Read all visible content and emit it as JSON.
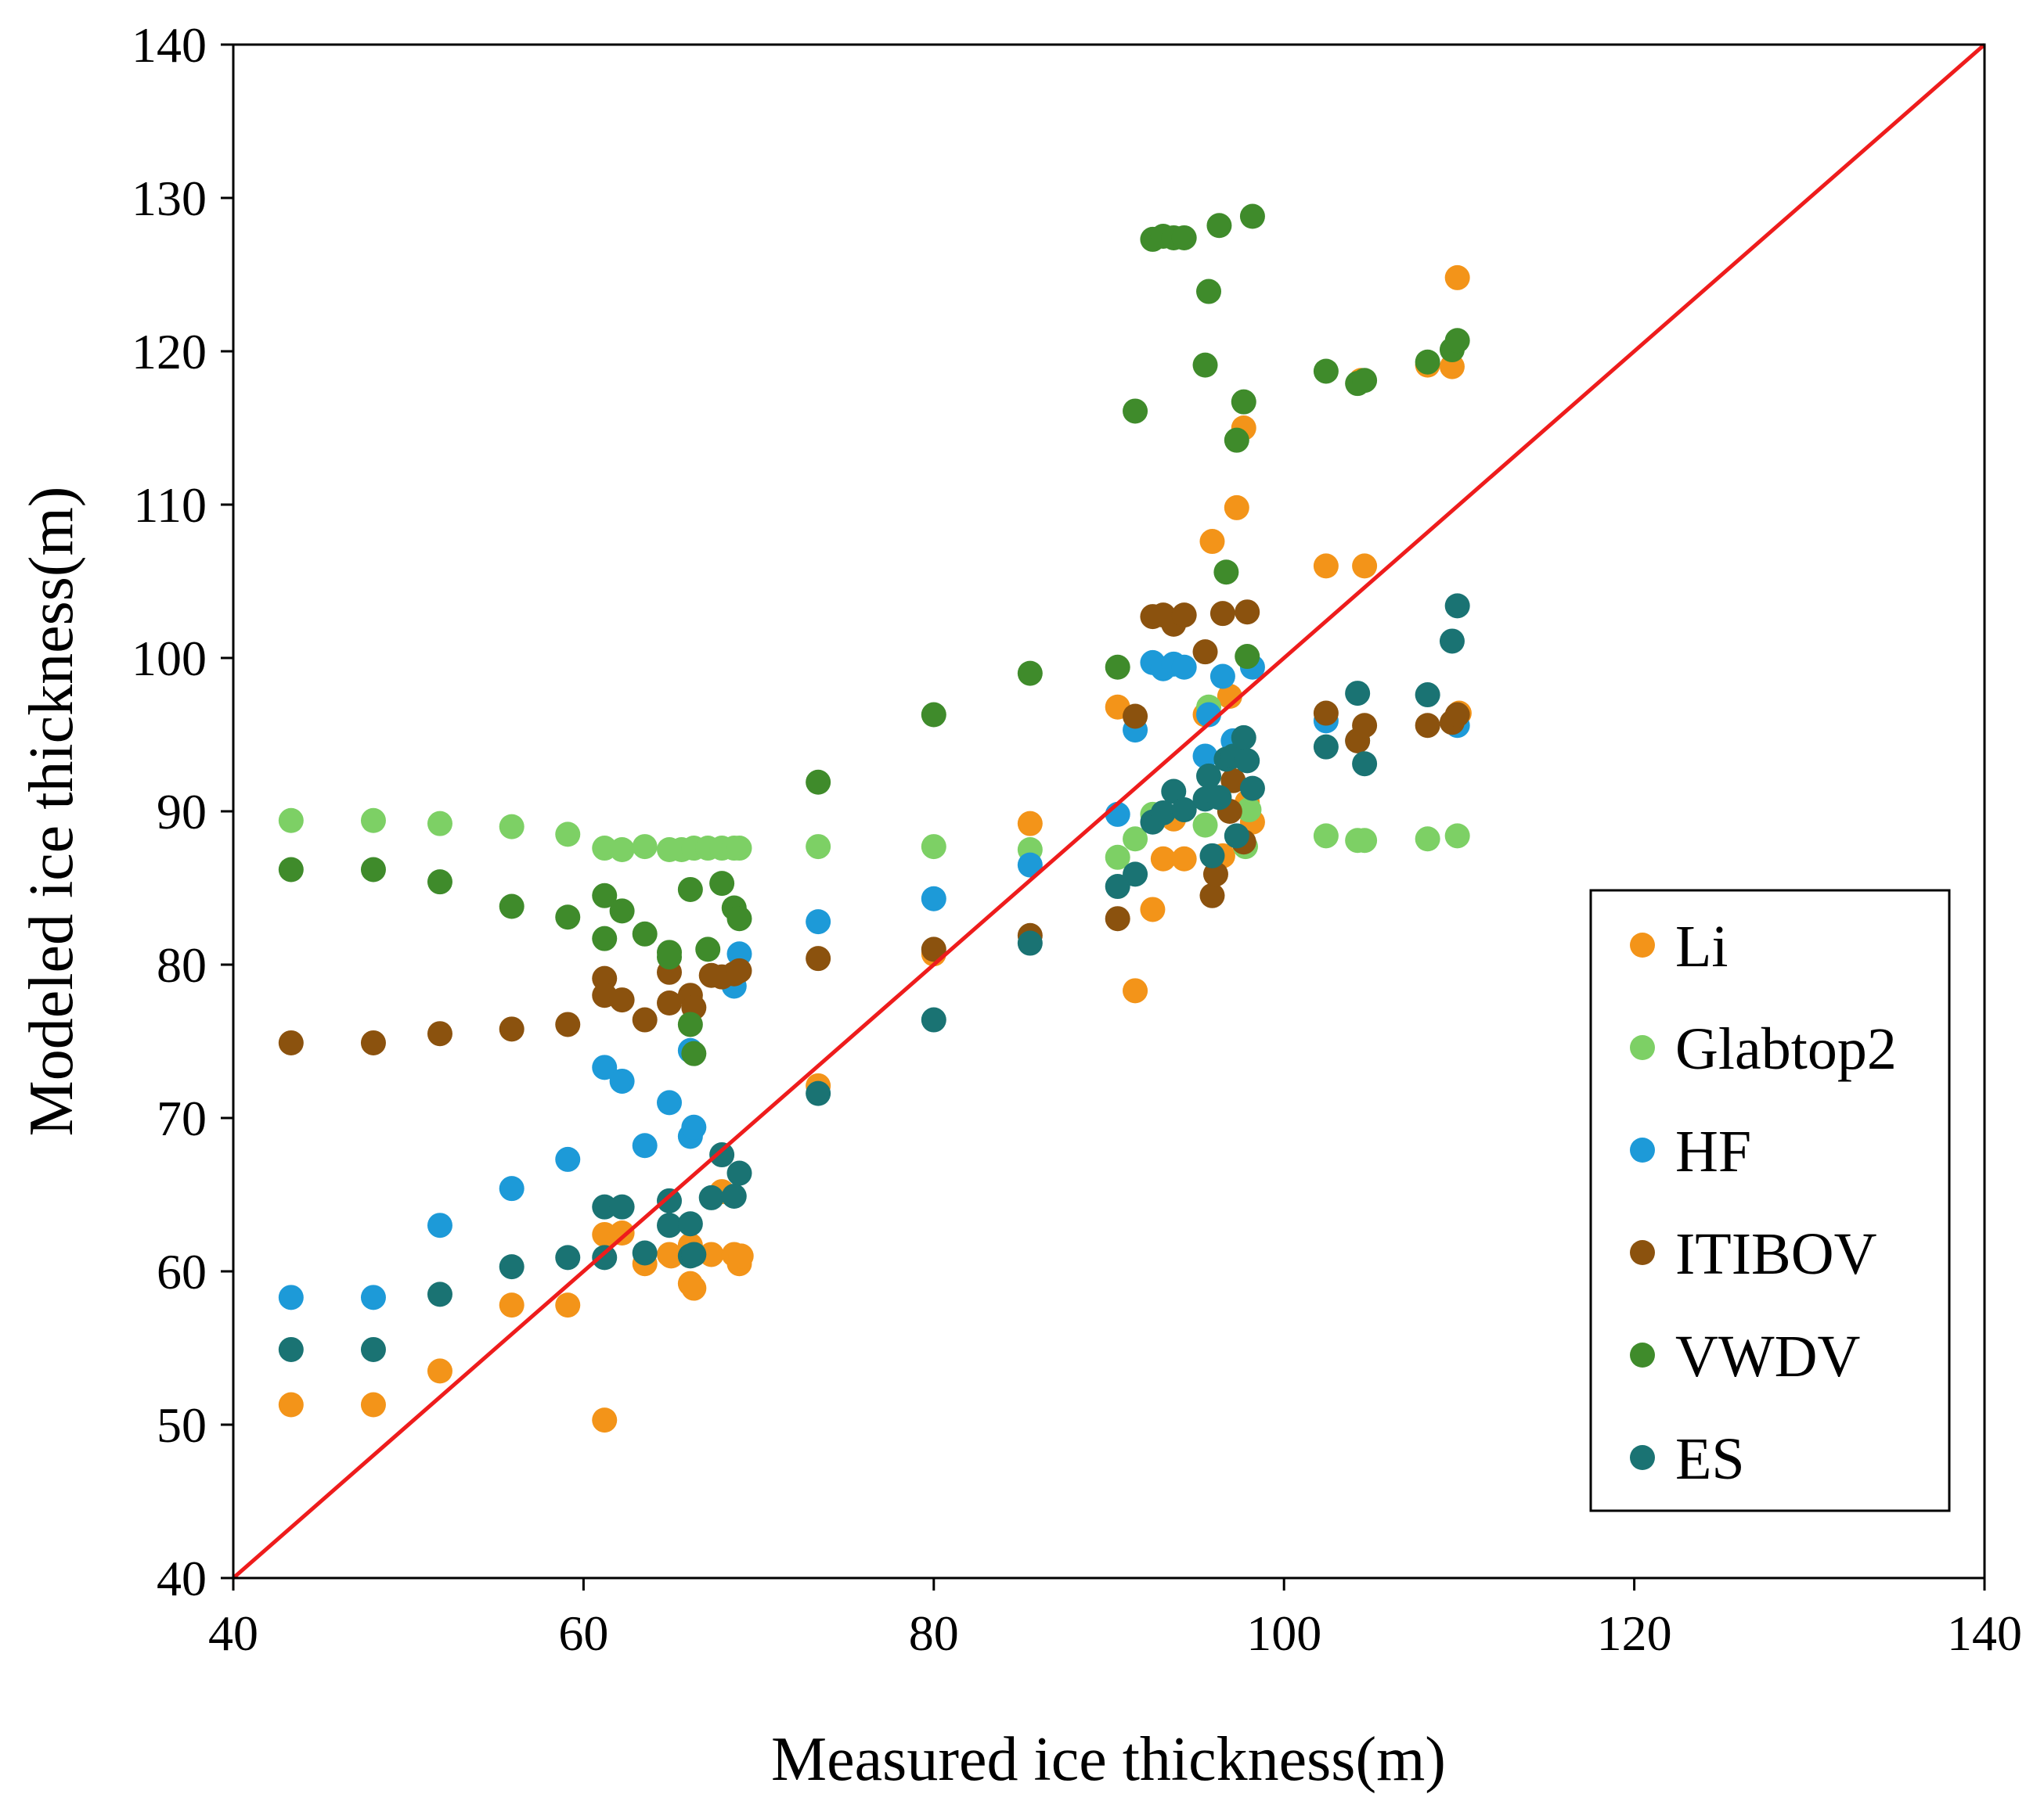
{
  "chart_data": {
    "type": "scatter",
    "title": "",
    "xlabel": "Measured ice thickness(m)",
    "ylabel": "Modeled ice thickness(m)",
    "xlim": [
      40,
      140
    ],
    "ylim": [
      40,
      140
    ],
    "xticks": [
      40,
      60,
      80,
      100,
      120,
      140
    ],
    "yticks": [
      40,
      50,
      60,
      70,
      80,
      90,
      100,
      110,
      120,
      130,
      140
    ],
    "grid": false,
    "legend_position": "bottom-right",
    "reference_line": {
      "name": "1:1 line",
      "color": "#ee1c1c",
      "from": [
        40,
        40
      ],
      "to": [
        140,
        140
      ]
    },
    "series": [
      {
        "name": "Li",
        "color": "#f39419",
        "x": [
          43.3,
          48,
          51.8,
          55.9,
          59.1,
          61.2,
          61.2,
          62.2,
          63.5,
          64.9,
          65,
          66.1,
          66.3,
          66.1,
          67.3,
          67.9,
          68.6,
          68.9,
          69,
          73.4,
          80,
          85.5,
          90.5,
          91.5,
          92.5,
          93.1,
          93.7,
          94.3,
          95.5,
          95.9,
          96.5,
          96.9,
          97.3,
          97.7,
          97.9,
          98.2,
          102.4,
          104.4,
          104.6,
          108.2,
          109.6,
          109.9,
          110
        ],
        "y": [
          51.3,
          51.3,
          53.5,
          57.8,
          57.8,
          50.3,
          62.4,
          62.5,
          60.5,
          61.1,
          61,
          59.2,
          58.9,
          61.7,
          61.1,
          65.2,
          61.1,
          60.5,
          61,
          72.1,
          80.7,
          89.2,
          96.8,
          78.3,
          83.6,
          86.9,
          89.5,
          86.9,
          96.3,
          107.6,
          87.1,
          97.5,
          109.8,
          115,
          90.6,
          89.3,
          106,
          118.1,
          106,
          119.1,
          119,
          124.8,
          96.4
        ]
      },
      {
        "name": "Glabtop2",
        "color": "#7dd065",
        "x": [
          43.3,
          48,
          51.8,
          55.9,
          59.1,
          61.2,
          62.2,
          63.5,
          64.9,
          65.6,
          66.3,
          67.1,
          67.9,
          68.6,
          68.9,
          73.4,
          80,
          85.5,
          90.5,
          91.5,
          92.5,
          95.5,
          95.7,
          97.8,
          98,
          102.4,
          104.2,
          104.6,
          108.2,
          109.9
        ],
        "y": [
          89.4,
          89.4,
          89.2,
          89,
          88.5,
          87.6,
          87.5,
          87.7,
          87.5,
          87.5,
          87.6,
          87.6,
          87.6,
          87.6,
          87.6,
          87.7,
          87.7,
          87.5,
          87,
          88.2,
          89.8,
          89.1,
          96.8,
          87.7,
          90.1,
          88.4,
          88.1,
          88.1,
          88.2,
          88.4
        ]
      },
      {
        "name": "HF",
        "color": "#1d9ad8",
        "x": [
          43.3,
          48,
          51.8,
          55.9,
          59.1,
          61.2,
          62.2,
          63.5,
          64.9,
          66.1,
          66.3,
          66.1,
          68.6,
          68.9,
          73.4,
          80,
          85.5,
          90.5,
          91.5,
          92.5,
          93.1,
          93.7,
          94.3,
          95.5,
          95.7,
          96.5,
          97.1,
          98.2,
          102.4,
          104.2,
          109.9
        ],
        "y": [
          58.3,
          58.3,
          63,
          65.4,
          67.3,
          73.3,
          72.4,
          68.2,
          71,
          68.8,
          69.4,
          74.4,
          78.6,
          80.7,
          82.8,
          84.3,
          86.5,
          89.8,
          95.3,
          99.7,
          99.3,
          99.6,
          99.4,
          93.6,
          96.3,
          98.8,
          94.6,
          99.4,
          95.9,
          94.6,
          95.6
        ]
      },
      {
        "name": "ITIBOV",
        "color": "#8b520e",
        "x": [
          43.3,
          48,
          51.8,
          55.9,
          59.1,
          61.2,
          61.2,
          62.2,
          63.5,
          64.9,
          64.9,
          66.1,
          66.3,
          67.3,
          67.9,
          68.6,
          68.9,
          73.4,
          80,
          85.5,
          90.5,
          91.5,
          92.5,
          93.1,
          93.7,
          94.3,
          95.5,
          95.9,
          96.1,
          96.5,
          96.9,
          97.1,
          97.7,
          97.9,
          102.4,
          104.2,
          104.6,
          108.2,
          109.6,
          109.9
        ],
        "y": [
          74.9,
          74.9,
          75.5,
          75.8,
          76.1,
          79.1,
          78,
          77.7,
          76.4,
          79.5,
          77.5,
          78,
          77.2,
          79.3,
          79.2,
          79.4,
          79.6,
          80.4,
          81,
          81.9,
          83,
          96.2,
          102.7,
          102.8,
          102.2,
          102.8,
          100.4,
          84.5,
          85.9,
          102.9,
          90,
          92,
          88,
          103,
          96.4,
          94.6,
          95.6,
          95.6,
          95.8,
          96.3
        ]
      },
      {
        "name": "VWDV",
        "color": "#3f8b2b",
        "x": [
          43.3,
          48,
          51.8,
          55.9,
          59.1,
          61.2,
          61.2,
          62.2,
          63.5,
          64.9,
          64.9,
          66.1,
          66.3,
          66.1,
          67.1,
          67.9,
          68.6,
          68.9,
          73.4,
          80,
          85.5,
          90.5,
          91.5,
          92.5,
          93.1,
          93.7,
          94.3,
          95.5,
          95.7,
          96.3,
          96.7,
          97.3,
          97.7,
          97.9,
          98.2,
          102.4,
          104.2,
          104.6,
          108.2,
          109.6,
          109.9
        ],
        "y": [
          86.2,
          86.2,
          85.4,
          83.8,
          83.1,
          84.5,
          81.7,
          83.5,
          82,
          80.8,
          80.5,
          76.1,
          74.2,
          84.9,
          81,
          85.3,
          83.7,
          83,
          91.9,
          96.3,
          99,
          99.4,
          116.1,
          127.3,
          127.5,
          127.4,
          127.4,
          119.1,
          123.9,
          128.2,
          105.6,
          114.2,
          116.7,
          100.1,
          128.8,
          118.7,
          117.9,
          118.1,
          119.3,
          120.1,
          120.7
        ]
      },
      {
        "name": "ES",
        "color": "#1a7373",
        "x": [
          43.3,
          48,
          51.8,
          55.9,
          59.1,
          61.2,
          61.2,
          62.2,
          63.5,
          64.9,
          64.9,
          66.1,
          66.3,
          66.1,
          67.3,
          67.9,
          68.6,
          68.9,
          73.4,
          80,
          85.5,
          90.5,
          91.5,
          92.5,
          93.1,
          93.7,
          94.3,
          95.5,
          95.7,
          95.9,
          96.3,
          96.7,
          97.1,
          97.3,
          97.7,
          97.9,
          98.2,
          102.4,
          104.2,
          104.6,
          108.2,
          109.6,
          109.9
        ],
        "y": [
          54.9,
          54.9,
          58.5,
          60.3,
          60.9,
          60.9,
          64.2,
          64.2,
          61.2,
          63,
          64.6,
          61,
          61.1,
          63.1,
          64.8,
          67.6,
          64.9,
          66.4,
          71.6,
          76.4,
          81.4,
          85.1,
          85.9,
          89.3,
          89.9,
          91.3,
          90.1,
          90.8,
          92.3,
          87.1,
          90.9,
          93.4,
          93.6,
          88.4,
          94.8,
          93.3,
          91.5,
          94.2,
          97.7,
          93.1,
          97.6,
          101.1,
          103.4
        ]
      }
    ]
  }
}
